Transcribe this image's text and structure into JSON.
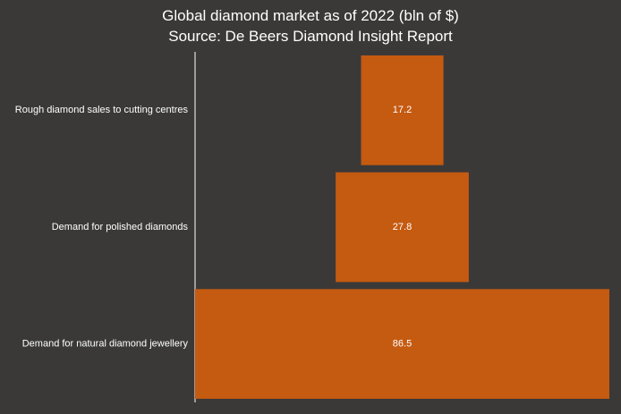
{
  "chart_data": {
    "type": "bar",
    "subtype": "centered-horizontal-funnel",
    "title": "Global diamond market as of 2022 (bln of $)",
    "subtitle": "Source: De Beers Diamond Insight Report",
    "categories": [
      "Rough diamond sales to cutting centres",
      "Demand for polished diamonds",
      "Demand for natural diamond jewellery"
    ],
    "values": [
      17.2,
      27.8,
      86.5
    ],
    "data_labels": [
      "17.2",
      "27.8",
      "86.5"
    ],
    "xlabel": "",
    "ylabel": "",
    "grid": false,
    "legend": "none",
    "colors": {
      "background": "#3a3938",
      "bar": "#c55a11",
      "text": "#ffffff",
      "axis": "#ffffff"
    }
  }
}
